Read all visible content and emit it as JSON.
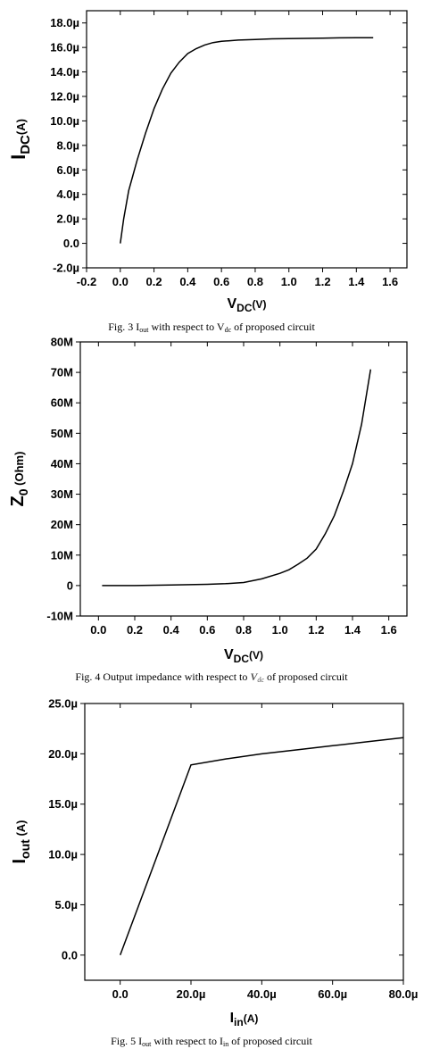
{
  "chart_data": [
    {
      "type": "line",
      "ylabel": "IDC(A)",
      "ylabel_main": "I",
      "ylabel_sub": "DC",
      "ylabel_unit": "(A)",
      "xlabel": "VDC(V)",
      "xlabel_main": "V",
      "xlabel_sub": "DC",
      "xlabel_unit": "(V)",
      "xlim": [
        -0.2,
        1.7
      ],
      "ylim": [
        -2.0,
        19.0
      ],
      "x_ticks": [
        -0.2,
        0.0,
        0.2,
        0.4,
        0.6,
        0.8,
        1.0,
        1.2,
        1.4,
        1.6
      ],
      "x_tick_labels": [
        "-0.2",
        "0.0",
        "0.2",
        "0.4",
        "0.6",
        "0.8",
        "1.0",
        "1.2",
        "1.4",
        "1.6"
      ],
      "y_ticks": [
        -2,
        0,
        2,
        4,
        6,
        8,
        10,
        12,
        14,
        16,
        18
      ],
      "y_tick_labels": [
        "-2.0µ",
        "0.0",
        "2.0µ",
        "4.0µ",
        "6.0µ",
        "8.0µ",
        "10.0µ",
        "12.0µ",
        "14.0µ",
        "16.0µ",
        "18.0µ"
      ],
      "caption_pre": "Fig. 3 I",
      "caption_sub1": "out",
      "caption_mid": " with respect to V",
      "caption_sub2": "dc",
      "caption_post": " of proposed circuit",
      "series": [
        {
          "x": [
            0.0,
            0.02,
            0.05,
            0.08,
            0.1,
            0.15,
            0.2,
            0.25,
            0.3,
            0.35,
            0.4,
            0.45,
            0.5,
            0.55,
            0.6,
            0.65,
            0.7,
            0.8,
            0.9,
            1.0,
            1.1,
            1.2,
            1.3,
            1.4,
            1.5
          ],
          "y": [
            0.0,
            2.0,
            4.3,
            5.8,
            6.8,
            9.0,
            11.0,
            12.6,
            13.9,
            14.8,
            15.5,
            15.9,
            16.2,
            16.4,
            16.5,
            16.55,
            16.6,
            16.65,
            16.7,
            16.72,
            16.74,
            16.76,
            16.78,
            16.8,
            16.8
          ]
        }
      ]
    },
    {
      "type": "line",
      "ylabel": "Z0 (Ohm)",
      "ylabel_main": "Z",
      "ylabel_sub": "0",
      "ylabel_unit": " (Ohm)",
      "xlabel": "VDC(V)",
      "xlabel_main": "V",
      "xlabel_sub": "DC",
      "xlabel_unit": "(V)",
      "xlim": [
        -0.1,
        1.7
      ],
      "ylim": [
        -10,
        80
      ],
      "x_ticks": [
        0.0,
        0.2,
        0.4,
        0.6,
        0.8,
        1.0,
        1.2,
        1.4,
        1.6
      ],
      "x_tick_labels": [
        "0.0",
        "0.2",
        "0.4",
        "0.6",
        "0.8",
        "1.0",
        "1.2",
        "1.4",
        "1.6"
      ],
      "y_ticks": [
        -10,
        0,
        10,
        20,
        30,
        40,
        50,
        60,
        70,
        80
      ],
      "y_tick_labels": [
        "-10M",
        "0",
        "10M",
        "20M",
        "30M",
        "40M",
        "50M",
        "60M",
        "70M",
        "80M"
      ],
      "caption_pre": "Fig. 4 Output impedance with respect to ",
      "caption_sub1": "",
      "caption_mid": "",
      "caption_sub2": "",
      "caption_post": " of proposed circuit",
      "caption_symbol": "Vdc",
      "series": [
        {
          "x": [
            0.02,
            0.2,
            0.4,
            0.6,
            0.7,
            0.8,
            0.9,
            1.0,
            1.05,
            1.1,
            1.15,
            1.2,
            1.25,
            1.3,
            1.35,
            1.4,
            1.45,
            1.5
          ],
          "y": [
            0.0,
            0.0,
            0.2,
            0.4,
            0.6,
            1.0,
            2.2,
            4.0,
            5.2,
            7.0,
            9.0,
            12.0,
            17.0,
            23.0,
            31.0,
            40.0,
            53.0,
            71.0
          ]
        }
      ]
    },
    {
      "type": "line",
      "ylabel": "Iout (A)",
      "ylabel_main": "I",
      "ylabel_sub": "out",
      "ylabel_unit": " (A)",
      "xlabel": "Iin(A)",
      "xlabel_main": "I",
      "xlabel_sub": "in",
      "xlabel_unit": "(A)",
      "xlim": [
        -10,
        80
      ],
      "ylim": [
        -2.5,
        25
      ],
      "x_ticks": [
        0,
        20,
        40,
        60,
        80
      ],
      "x_tick_labels": [
        "0.0",
        "20.0µ",
        "40.0µ",
        "60.0µ",
        "80.0µ"
      ],
      "y_ticks": [
        0,
        5,
        10,
        15,
        20,
        25
      ],
      "y_tick_labels": [
        "0.0",
        "5.0µ",
        "10.0µ",
        "15.0µ",
        "20.0µ",
        "25.0µ"
      ],
      "caption_pre": "Fig. 5 I",
      "caption_sub1": "out",
      "caption_mid": " with respect to I",
      "caption_sub2": "in",
      "caption_post": " of proposed circuit",
      "series": [
        {
          "x": [
            0,
            20,
            30,
            40,
            50,
            60,
            70,
            80
          ],
          "y": [
            0.0,
            18.9,
            19.5,
            20.0,
            20.4,
            20.8,
            21.2,
            21.6
          ]
        }
      ]
    }
  ]
}
